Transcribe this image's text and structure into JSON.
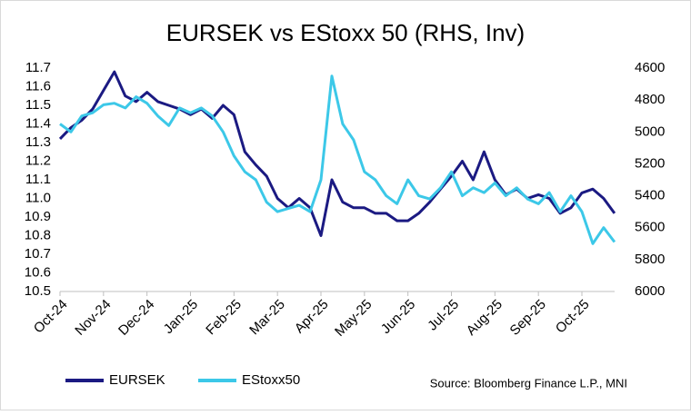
{
  "chart_data": {
    "type": "line",
    "title": "EURSEK vs EStoxx 50 (RHS, Inv)",
    "source": "Source: Bloomberg Finance L.P., MNI",
    "categories": [
      "Oct-24",
      null,
      null,
      null,
      "Nov-24",
      null,
      null,
      null,
      "Dec-24",
      null,
      null,
      null,
      "Jan-25",
      null,
      null,
      null,
      "Feb-25",
      null,
      null,
      null,
      "Mar-25",
      null,
      null,
      null,
      "Apr-25",
      null,
      null,
      null,
      "May-25",
      null,
      null,
      null,
      "Jun-25",
      null,
      null,
      null,
      "Jul-25",
      null,
      null,
      null,
      "Aug-25",
      null,
      null,
      null,
      "Sep-25",
      null,
      null,
      null,
      "Oct-25",
      null,
      null,
      null
    ],
    "series": [
      {
        "name": "EURSEK",
        "color": "#1b1a82",
        "values": [
          11.32,
          11.38,
          11.42,
          11.48,
          11.58,
          11.68,
          11.55,
          11.52,
          11.57,
          11.52,
          11.5,
          11.48,
          11.45,
          11.48,
          11.43,
          11.5,
          11.45,
          11.25,
          11.18,
          11.12,
          11.0,
          10.95,
          11.0,
          10.95,
          10.8,
          11.1,
          10.98,
          10.95,
          10.95,
          10.92,
          10.92,
          10.88,
          10.88,
          10.92,
          10.98,
          11.05,
          11.12,
          11.2,
          11.1,
          11.25,
          11.1,
          11.02,
          11.05,
          11.0,
          11.02,
          11.0,
          10.92,
          10.95,
          11.03,
          11.05,
          11.0,
          10.92
        ]
      },
      {
        "name": "EStoxx50",
        "color": "#3cc8e8",
        "axis": "y2",
        "values": [
          4950,
          5000,
          4900,
          4880,
          4830,
          4820,
          4850,
          4780,
          4820,
          4900,
          4960,
          4850,
          4880,
          4850,
          4900,
          5000,
          5150,
          5250,
          5300,
          5440,
          5500,
          5480,
          5460,
          5500,
          5300,
          4650,
          4950,
          5050,
          5250,
          5300,
          5400,
          5450,
          5300,
          5400,
          5420,
          5350,
          5250,
          5400,
          5350,
          5380,
          5320,
          5400,
          5350,
          5420,
          5450,
          5380,
          5500,
          5400,
          5500,
          5700,
          5600,
          5690
        ]
      }
    ],
    "ylim": [
      10.5,
      11.7
    ],
    "yticks": [
      10.5,
      10.6,
      10.7,
      10.8,
      10.9,
      {
        "value": 11,
        "label": "11.0"
      },
      11.1,
      11.2,
      11.3,
      11.4,
      11.5,
      11.6,
      11.7
    ],
    "y2lim": [
      6000,
      4600
    ],
    "y2ticks": [
      4600,
      4800,
      5000,
      5200,
      5400,
      5600,
      5800,
      6000
    ]
  }
}
